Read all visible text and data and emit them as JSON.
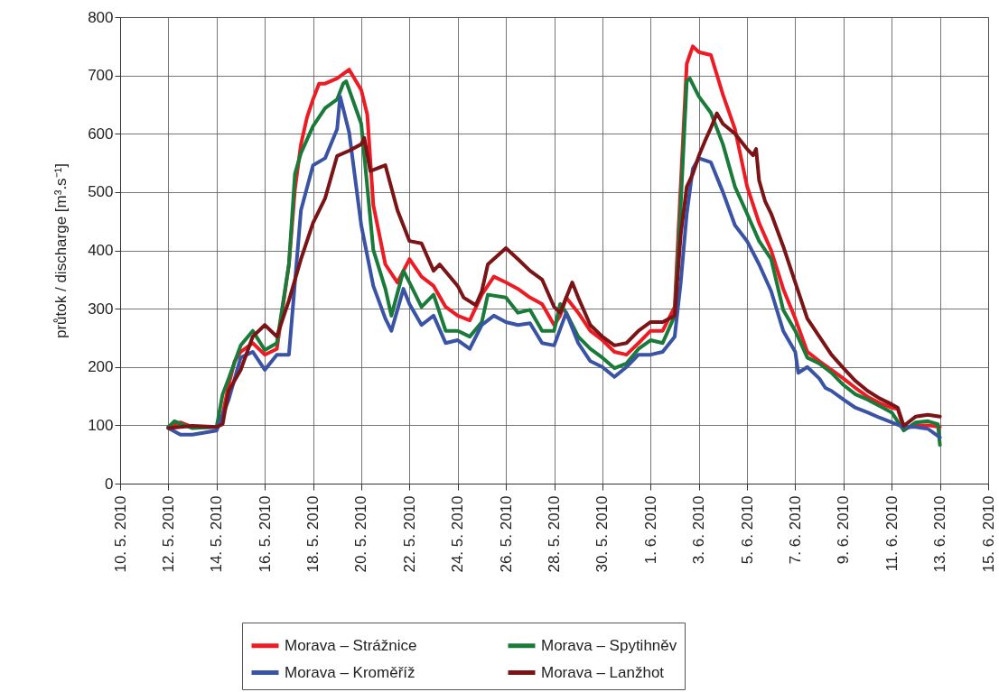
{
  "chart_data": {
    "type": "line",
    "ylabel": "průtok / discharge [m³.s⁻¹]",
    "xlim": [
      "2010-05-10",
      "2010-06-15"
    ],
    "xticks": [
      {
        "value": "2010-05-10",
        "label": "10. 5. 2010"
      },
      {
        "value": "2010-05-12",
        "label": "12. 5. 2010"
      },
      {
        "value": "2010-05-14",
        "label": "14. 5. 2010"
      },
      {
        "value": "2010-05-16",
        "label": "16. 5. 2010"
      },
      {
        "value": "2010-05-18",
        "label": "18. 5. 2010"
      },
      {
        "value": "2010-05-20",
        "label": "20. 5. 2010"
      },
      {
        "value": "2010-05-22",
        "label": "22. 5. 2010"
      },
      {
        "value": "2010-05-24",
        "label": "24. 5. 2010"
      },
      {
        "value": "2010-05-26",
        "label": "26. 5. 2010"
      },
      {
        "value": "2010-05-28",
        "label": "28. 5. 2010"
      },
      {
        "value": "2010-05-30",
        "label": "30. 5. 2010"
      },
      {
        "value": "2010-06-01",
        "label": "1. 6. 2010"
      },
      {
        "value": "2010-06-03",
        "label": "3. 6. 2010"
      },
      {
        "value": "2010-06-05",
        "label": "5. 6. 2010"
      },
      {
        "value": "2010-06-07",
        "label": "7. 6. 2010"
      },
      {
        "value": "2010-06-09",
        "label": "9. 6. 2010"
      },
      {
        "value": "2010-06-11",
        "label": "11. 6. 2010"
      },
      {
        "value": "2010-06-13",
        "label": "13. 6. 2010"
      },
      {
        "value": "2010-06-15",
        "label": "15. 6. 2010"
      }
    ],
    "ylim": [
      0,
      800
    ],
    "yticks": [
      0,
      100,
      200,
      300,
      400,
      500,
      600,
      700,
      800
    ],
    "grid": true,
    "legend": "bottom",
    "series": [
      {
        "name": "Morava – Strážnice",
        "color": "#ed1c24",
        "x": [
          "2010-05-12T00:00",
          "2010-05-12T12:00",
          "2010-05-13T00:00",
          "2010-05-14T00:00",
          "2010-05-14T06:00",
          "2010-05-14T12:00",
          "2010-05-14T18:00",
          "2010-05-15T00:00",
          "2010-05-15T12:00",
          "2010-05-16T00:00",
          "2010-05-16T12:00",
          "2010-05-17T00:00",
          "2010-05-17T06:00",
          "2010-05-17T12:00",
          "2010-05-17T18:00",
          "2010-05-18T00:00",
          "2010-05-18T06:00",
          "2010-05-18T12:00",
          "2010-05-19T00:00",
          "2010-05-19T12:00",
          "2010-05-20T00:00",
          "2010-05-20T06:00",
          "2010-05-20T12:00",
          "2010-05-21T00:00",
          "2010-05-21T12:00",
          "2010-05-22T00:00",
          "2010-05-22T12:00",
          "2010-05-23T00:00",
          "2010-05-23T12:00",
          "2010-05-24T00:00",
          "2010-05-24T12:00",
          "2010-05-25T00:00",
          "2010-05-25T12:00",
          "2010-05-26T00:00",
          "2010-05-26T12:00",
          "2010-05-27T00:00",
          "2010-05-27T12:00",
          "2010-05-28T00:00",
          "2010-05-28T06:00",
          "2010-05-28T12:00",
          "2010-05-29T00:00",
          "2010-05-29T12:00",
          "2010-05-30T00:00",
          "2010-05-30T12:00",
          "2010-05-31T00:00",
          "2010-05-31T12:00",
          "2010-06-01T00:00",
          "2010-06-01T12:00",
          "2010-06-02T00:00",
          "2010-06-02T12:00",
          "2010-06-02T18:00",
          "2010-06-03T00:00",
          "2010-06-03T12:00",
          "2010-06-04T00:00",
          "2010-06-04T12:00",
          "2010-06-05T00:00",
          "2010-06-05T12:00",
          "2010-06-06T00:00",
          "2010-06-06T12:00",
          "2010-06-07T00:00",
          "2010-06-07T12:00",
          "2010-06-08T00:00",
          "2010-06-08T12:00",
          "2010-06-09T00:00",
          "2010-06-09T12:00",
          "2010-06-10T00:00",
          "2010-06-10T12:00",
          "2010-06-11T00:00",
          "2010-06-11T06:00",
          "2010-06-11T12:00",
          "2010-06-12T00:00",
          "2010-06-12T12:00",
          "2010-06-13T00:00"
        ],
        "values": [
          97,
          105,
          97,
          97,
          118,
          169,
          210,
          226,
          241,
          221,
          231,
          376,
          505,
          582,
          628,
          659,
          686,
          686,
          695,
          710,
          675,
          633,
          478,
          376,
          345,
          385,
          355,
          339,
          303,
          288,
          280,
          324,
          355,
          345,
          334,
          319,
          308,
          272,
          288,
          319,
          293,
          262,
          246,
          226,
          221,
          241,
          262,
          262,
          303,
          720,
          750,
          740,
          735,
          667,
          608,
          510,
          447,
          400,
          334,
          283,
          226,
          210,
          195,
          180,
          164,
          149,
          138,
          130,
          128,
          94,
          100,
          100,
          97
        ]
      },
      {
        "name": "Morava – Spytihněv",
        "color": "#1a7a3a",
        "x": [
          "2010-05-12T00:00",
          "2010-05-12T06:00",
          "2010-05-13T00:00",
          "2010-05-14T00:00",
          "2010-05-14T06:00",
          "2010-05-14T12:00",
          "2010-05-15T00:00",
          "2010-05-15T12:00",
          "2010-05-16T00:00",
          "2010-05-16T12:00",
          "2010-05-17T00:00",
          "2010-05-17T06:00",
          "2010-05-17T12:00",
          "2010-05-18T00:00",
          "2010-05-18T12:00",
          "2010-05-19T00:00",
          "2010-05-19T06:00",
          "2010-05-19T09:00",
          "2010-05-20T00:00",
          "2010-05-20T12:00",
          "2010-05-21T00:00",
          "2010-05-21T06:00",
          "2010-05-21T18:00",
          "2010-05-22T00:00",
          "2010-05-22T12:00",
          "2010-05-23T00:00",
          "2010-05-23T12:00",
          "2010-05-24T00:00",
          "2010-05-24T12:00",
          "2010-05-25T00:00",
          "2010-05-25T06:00",
          "2010-05-26T00:00",
          "2010-05-26T12:00",
          "2010-05-27T00:00",
          "2010-05-27T12:00",
          "2010-05-28T00:00",
          "2010-05-28T06:00",
          "2010-05-28T12:00",
          "2010-05-29T00:00",
          "2010-05-29T12:00",
          "2010-05-30T00:00",
          "2010-05-30T12:00",
          "2010-05-31T00:00",
          "2010-05-31T12:00",
          "2010-06-01T00:00",
          "2010-06-01T12:00",
          "2010-06-02T00:00",
          "2010-06-02T06:00",
          "2010-06-02T12:00",
          "2010-06-02T15:00",
          "2010-06-03T00:00",
          "2010-06-03T12:00",
          "2010-06-04T00:00",
          "2010-06-04T12:00",
          "2010-06-05T00:00",
          "2010-06-05T12:00",
          "2010-06-06T00:00",
          "2010-06-06T12:00",
          "2010-06-07T00:00",
          "2010-06-07T12:00",
          "2010-06-08T00:00",
          "2010-06-08T12:00",
          "2010-06-09T00:00",
          "2010-06-09T12:00",
          "2010-06-10T00:00",
          "2010-06-10T12:00",
          "2010-06-11T00:00",
          "2010-06-11T12:00",
          "2010-06-12T00:00",
          "2010-06-12T12:00",
          "2010-06-12T22:00",
          "2010-06-13T00:00"
        ],
        "values": [
          97,
          107,
          95,
          97,
          153,
          180,
          237,
          262,
          229,
          241,
          376,
          531,
          567,
          613,
          644,
          659,
          686,
          690,
          617,
          401,
          334,
          288,
          365,
          345,
          303,
          324,
          262,
          262,
          252,
          277,
          324,
          319,
          293,
          298,
          262,
          262,
          308,
          293,
          252,
          231,
          216,
          198,
          206,
          231,
          246,
          241,
          288,
          478,
          690,
          695,
          664,
          636,
          582,
          509,
          463,
          416,
          385,
          298,
          262,
          216,
          206,
          190,
          169,
          153,
          144,
          133,
          122,
          91,
          105,
          107,
          102,
          66
        ]
      },
      {
        "name": "Morava – Kroměříž",
        "color": "#3a53a4",
        "x": [
          "2010-05-12T00:00",
          "2010-05-12T12:00",
          "2010-05-13T00:00",
          "2010-05-14T00:00",
          "2010-05-14T12:00",
          "2010-05-15T00:00",
          "2010-05-15T12:00",
          "2010-05-16T00:00",
          "2010-05-16T12:00",
          "2010-05-17T00:00",
          "2010-05-17T06:00",
          "2010-05-17T12:00",
          "2010-05-18T00:00",
          "2010-05-18T12:00",
          "2010-05-19T00:00",
          "2010-05-19T03:00",
          "2010-05-19T12:00",
          "2010-05-20T00:00",
          "2010-05-20T12:00",
          "2010-05-21T00:00",
          "2010-05-21T06:00",
          "2010-05-21T18:00",
          "2010-05-22T00:00",
          "2010-05-22T12:00",
          "2010-05-23T00:00",
          "2010-05-23T12:00",
          "2010-05-24T00:00",
          "2010-05-24T12:00",
          "2010-05-25T00:00",
          "2010-05-25T12:00",
          "2010-05-26T00:00",
          "2010-05-26T12:00",
          "2010-05-27T00:00",
          "2010-05-27T12:00",
          "2010-05-28T00:00",
          "2010-05-28T12:00",
          "2010-05-29T00:00",
          "2010-05-29T12:00",
          "2010-05-30T00:00",
          "2010-05-30T12:00",
          "2010-05-31T00:00",
          "2010-05-31T12:00",
          "2010-06-01T00:00",
          "2010-06-01T12:00",
          "2010-06-02T00:00",
          "2010-06-02T06:00",
          "2010-06-02T12:00",
          "2010-06-02T18:00",
          "2010-06-03T00:00",
          "2010-06-03T12:00",
          "2010-06-04T00:00",
          "2010-06-04T12:00",
          "2010-06-05T00:00",
          "2010-06-05T12:00",
          "2010-06-06T00:00",
          "2010-06-06T12:00",
          "2010-06-07T00:00",
          "2010-06-07T03:00",
          "2010-06-07T12:00",
          "2010-06-08T00:00",
          "2010-06-08T06:00",
          "2010-06-08T12:00",
          "2010-06-09T00:00",
          "2010-06-09T12:00",
          "2010-06-10T00:00",
          "2010-06-10T12:00",
          "2010-06-11T00:00",
          "2010-06-11T12:00",
          "2010-06-12T00:00",
          "2010-06-12T12:00",
          "2010-06-13T00:00"
        ],
        "values": [
          95,
          84,
          84,
          91,
          144,
          216,
          226,
          195,
          221,
          221,
          345,
          469,
          546,
          558,
          608,
          664,
          602,
          443,
          339,
          283,
          262,
          334,
          308,
          272,
          288,
          241,
          246,
          231,
          272,
          288,
          277,
          272,
          275,
          241,
          237,
          293,
          241,
          210,
          200,
          183,
          200,
          221,
          221,
          226,
          252,
          345,
          463,
          540,
          558,
          551,
          500,
          443,
          416,
          376,
          330,
          262,
          226,
          190,
          200,
          180,
          164,
          159,
          144,
          130,
          122,
          113,
          105,
          97,
          97,
          94,
          79
        ]
      },
      {
        "name": "Morava – Lanžhot",
        "color": "#7b1416",
        "x": [
          "2010-05-12T00:00",
          "2010-05-13T00:00",
          "2010-05-14T00:00",
          "2010-05-14T06:00",
          "2010-05-14T12:00",
          "2010-05-15T00:00",
          "2010-05-15T12:00",
          "2010-05-16T00:00",
          "2010-05-16T12:00",
          "2010-05-17T00:00",
          "2010-05-17T12:00",
          "2010-05-18T00:00",
          "2010-05-18T12:00",
          "2010-05-19T00:00",
          "2010-05-19T12:00",
          "2010-05-20T00:00",
          "2010-05-20T03:00",
          "2010-05-20T09:00",
          "2010-05-21T00:00",
          "2010-05-21T12:00",
          "2010-05-22T00:00",
          "2010-05-22T12:00",
          "2010-05-23T00:00",
          "2010-05-23T06:00",
          "2010-05-24T00:00",
          "2010-05-24T06:00",
          "2010-05-24T18:00",
          "2010-05-25T00:00",
          "2010-05-25T06:00",
          "2010-05-26T00:00",
          "2010-05-26T12:00",
          "2010-05-27T00:00",
          "2010-05-27T12:00",
          "2010-05-28T00:00",
          "2010-05-28T06:00",
          "2010-05-28T18:00",
          "2010-05-29T00:00",
          "2010-05-29T12:00",
          "2010-05-30T00:00",
          "2010-05-30T12:00",
          "2010-05-31T00:00",
          "2010-05-31T12:00",
          "2010-06-01T00:00",
          "2010-06-01T12:00",
          "2010-06-02T00:00",
          "2010-06-02T06:00",
          "2010-06-02T12:00",
          "2010-06-02T18:00",
          "2010-06-03T00:00",
          "2010-06-03T06:00",
          "2010-06-03T12:00",
          "2010-06-03T18:00",
          "2010-06-04T00:00",
          "2010-06-04T12:00",
          "2010-06-05T00:00",
          "2010-06-05T06:00",
          "2010-06-05T09:00",
          "2010-06-05T12:00",
          "2010-06-05T18:00",
          "2010-06-06T00:00",
          "2010-06-06T12:00",
          "2010-06-07T00:00",
          "2010-06-07T12:00",
          "2010-06-08T00:00",
          "2010-06-08T12:00",
          "2010-06-09T00:00",
          "2010-06-09T12:00",
          "2010-06-10T00:00",
          "2010-06-10T12:00",
          "2010-06-11T00:00",
          "2010-06-11T06:00",
          "2010-06-11T12:00",
          "2010-06-12T00:00",
          "2010-06-12T12:00",
          "2010-06-13T00:00"
        ],
        "values": [
          95,
          99,
          97,
          102,
          159,
          195,
          252,
          272,
          252,
          314,
          385,
          447,
          489,
          562,
          571,
          582,
          593,
          536,
          546,
          469,
          416,
          412,
          365,
          376,
          339,
          319,
          306,
          330,
          376,
          404,
          385,
          365,
          350,
          303,
          293,
          345,
          319,
          272,
          252,
          237,
          241,
          262,
          277,
          277,
          288,
          427,
          509,
          531,
          562,
          587,
          610,
          635,
          617,
          600,
          574,
          563,
          574,
          520,
          484,
          463,
          407,
          345,
          283,
          252,
          221,
          198,
          176,
          159,
          146,
          136,
          130,
          99,
          115,
          118,
          115
        ]
      }
    ]
  }
}
